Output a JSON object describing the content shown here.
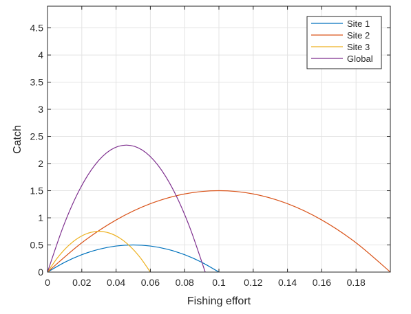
{
  "chart_data": {
    "type": "line",
    "title": "",
    "xlabel": "Fishing effort",
    "ylabel": "Catch",
    "xlim": [
      0,
      0.2
    ],
    "ylim": [
      0,
      4.9
    ],
    "xticks": [
      0,
      0.02,
      0.04,
      0.06,
      0.08,
      0.1,
      0.12,
      0.14,
      0.16,
      0.18
    ],
    "xtick_labels": [
      "0",
      "0.02",
      "0.04",
      "0.06",
      "0.08",
      "0.1",
      "0.12",
      "0.14",
      "0.16",
      "0.18"
    ],
    "yticks": [
      0,
      0.5,
      1,
      1.5,
      2,
      2.5,
      3,
      3.5,
      4,
      4.5
    ],
    "ytick_labels": [
      "0",
      "0.5",
      "1",
      "1.5",
      "2",
      "2.5",
      "3",
      "3.5",
      "4",
      "4.5"
    ],
    "grid": true,
    "legend_position": "top-right",
    "series": [
      {
        "name": "Site 1",
        "color": "#0072bd",
        "x": [
          0,
          0.01,
          0.02,
          0.03,
          0.04,
          0.05,
          0.06,
          0.07,
          0.08,
          0.09,
          0.1
        ],
        "y": [
          0,
          0.18,
          0.32,
          0.42,
          0.48,
          0.5,
          0.48,
          0.42,
          0.32,
          0.18,
          0
        ]
      },
      {
        "name": "Site 2",
        "color": "#d95319",
        "x": [
          0,
          0.02,
          0.04,
          0.06,
          0.08,
          0.1,
          0.12,
          0.14,
          0.16,
          0.18,
          0.2
        ],
        "y": [
          0,
          0.54,
          0.96,
          1.26,
          1.44,
          1.5,
          1.44,
          1.26,
          0.96,
          0.54,
          0
        ]
      },
      {
        "name": "Site 3",
        "color": "#edb120",
        "x": [
          0,
          0.006,
          0.012,
          0.018,
          0.024,
          0.03,
          0.036,
          0.042,
          0.048,
          0.054,
          0.06
        ],
        "y": [
          0,
          0.27,
          0.48,
          0.63,
          0.72,
          0.75,
          0.72,
          0.63,
          0.48,
          0.27,
          0
        ]
      },
      {
        "name": "Global",
        "color": "#7e2f8e",
        "x": [
          0,
          0.0092,
          0.0184,
          0.0276,
          0.0368,
          0.046,
          0.0552,
          0.0644,
          0.0736,
          0.0828,
          0.092
        ],
        "y": [
          0,
          0.84,
          1.5,
          1.97,
          2.25,
          2.34,
          2.25,
          1.97,
          1.5,
          0.84,
          0
        ]
      }
    ]
  }
}
